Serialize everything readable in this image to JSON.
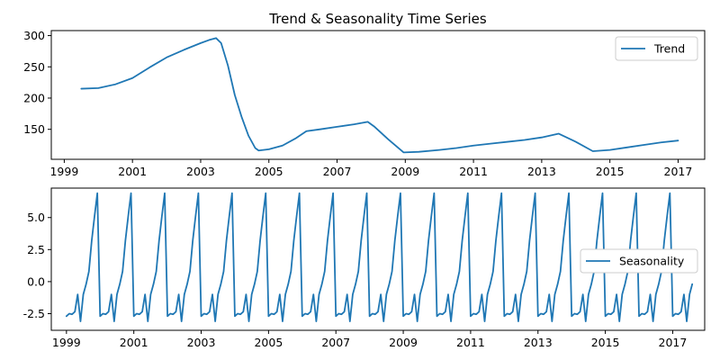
{
  "colors": {
    "series": "#1f77b4",
    "axis": "#000000",
    "legend_border": "#cccccc"
  },
  "chart_data": [
    {
      "type": "line",
      "title": "Trend & Seasonality Time Series",
      "xlabel": "",
      "ylabel": "",
      "xlim": [
        1998.62,
        2017.78
      ],
      "ylim": [
        102,
        308
      ],
      "xticks": [
        "1999",
        "2001",
        "2003",
        "2005",
        "2007",
        "2009",
        "2011",
        "2013",
        "2015",
        "2017"
      ],
      "yticks": [
        "150",
        "200",
        "250",
        "300"
      ],
      "legend": {
        "position": "upper-right",
        "entries": [
          "Trend"
        ]
      },
      "series": [
        {
          "name": "Trend",
          "x": [
            1999.5,
            2000.0,
            2000.5,
            2001.0,
            2001.5,
            2002.0,
            2002.5,
            2003.0,
            2003.25,
            2003.45,
            2003.6,
            2003.8,
            2004.0,
            2004.2,
            2004.4,
            2004.6,
            2004.7,
            2005.0,
            2005.4,
            2005.8,
            2006.1,
            2006.5,
            2007.0,
            2007.5,
            2007.9,
            2008.1,
            2008.5,
            2008.95,
            2009.4,
            2010.0,
            2010.5,
            2011.0,
            2011.5,
            2012.0,
            2012.5,
            2013.0,
            2013.5,
            2014.0,
            2014.5,
            2015.0,
            2015.5,
            2016.0,
            2016.5,
            2017.0
          ],
          "values": [
            215,
            216,
            222,
            232,
            249,
            265,
            277,
            288,
            293,
            296,
            288,
            252,
            205,
            170,
            140,
            120,
            116,
            118,
            124,
            136,
            147,
            150,
            154,
            158,
            162,
            154,
            134,
            113,
            114,
            117,
            120,
            124,
            127,
            130,
            133,
            137,
            143,
            130,
            115,
            117,
            121,
            125,
            129,
            132
          ]
        }
      ]
    },
    {
      "type": "line",
      "title": "",
      "xlabel": "",
      "ylabel": "",
      "xlim": [
        1998.55,
        2017.95
      ],
      "ylim": [
        -3.8,
        7.3
      ],
      "xticks": [
        "1999",
        "2001",
        "2003",
        "2005",
        "2007",
        "2009",
        "2011",
        "2013",
        "2015",
        "2017"
      ],
      "yticks": [
        "-2.5",
        "0.0",
        "2.5",
        "5.0"
      ],
      "legend": {
        "position": "center-right",
        "entries": [
          "Seasonality"
        ]
      },
      "series": [
        {
          "name": "Seasonality",
          "start": 1999.0,
          "step_years": 0.0833333,
          "monthly_pattern": [
            -2.7,
            -2.5,
            -2.55,
            -2.35,
            -1.0,
            -3.1,
            -1.0,
            -0.2,
            0.8,
            3.2,
            5.1,
            6.9
          ],
          "end": 2017.58,
          "final_point": [
            2017.58,
            -0.2
          ]
        }
      ]
    }
  ]
}
